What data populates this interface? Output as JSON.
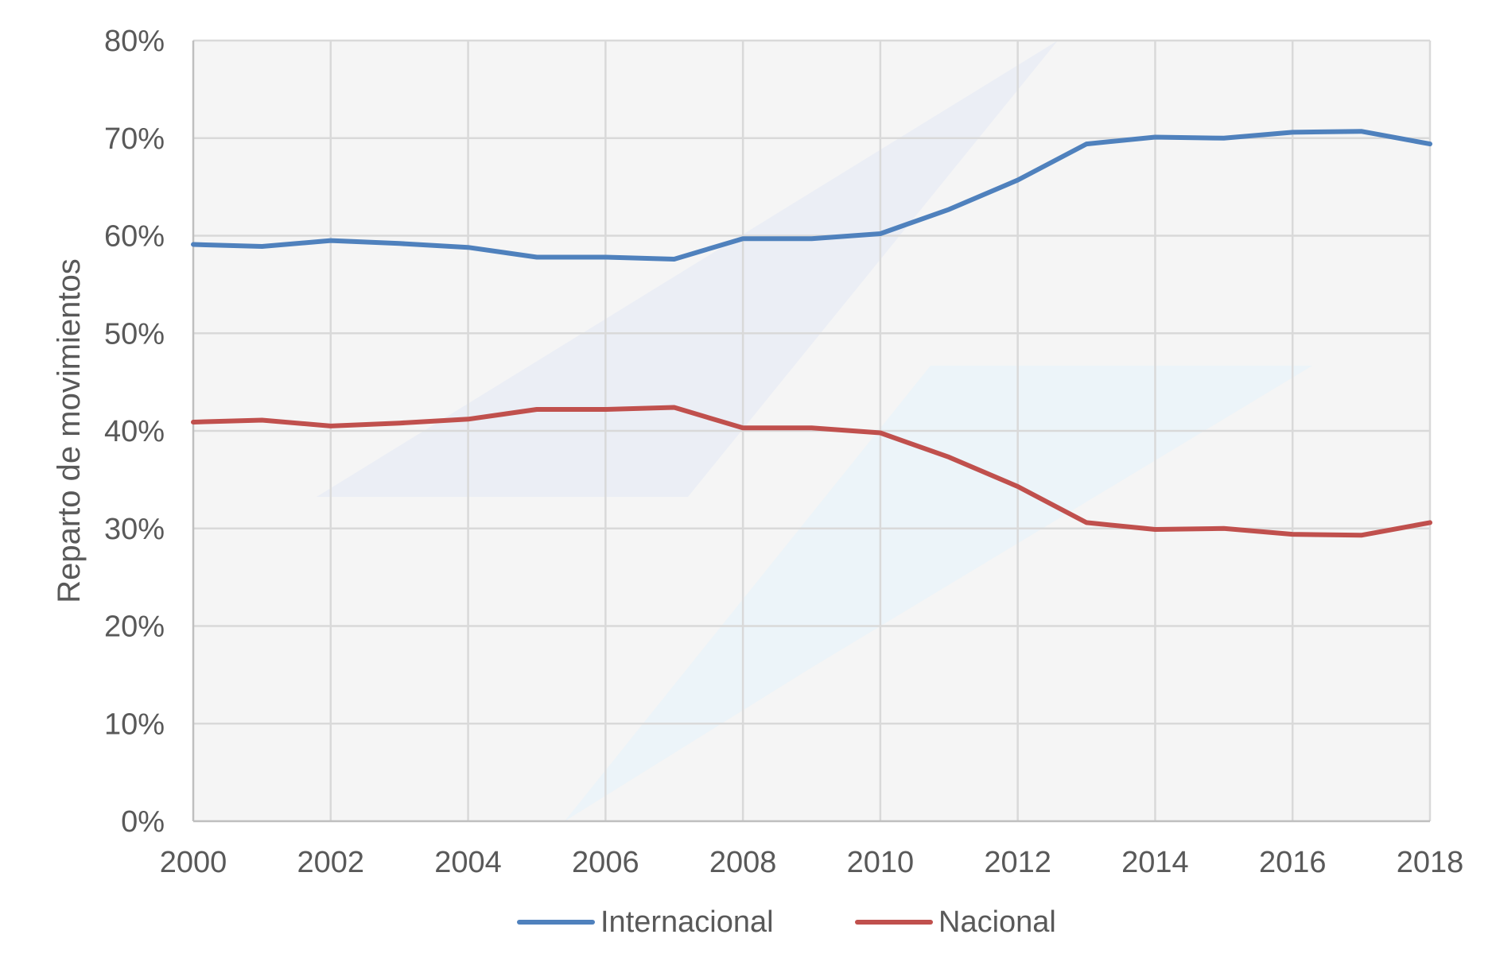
{
  "chart_data": {
    "type": "line",
    "title": "",
    "xlabel": "",
    "ylabel": "Reparto de movimientos",
    "x": [
      2000,
      2001,
      2002,
      2003,
      2004,
      2005,
      2006,
      2007,
      2008,
      2009,
      2010,
      2011,
      2012,
      2013,
      2014,
      2015,
      2016,
      2017,
      2018
    ],
    "x_ticks": [
      "2000",
      "2002",
      "2004",
      "2006",
      "2008",
      "2010",
      "2012",
      "2014",
      "2016",
      "2018"
    ],
    "xlim": [
      2000,
      2018
    ],
    "ylim": [
      0,
      80
    ],
    "y_ticks": [
      "0%",
      "10%",
      "20%",
      "30%",
      "40%",
      "50%",
      "60%",
      "70%",
      "80%"
    ],
    "grid": true,
    "legend_position": "bottom",
    "series": [
      {
        "name": "Internacional",
        "color": "#4f81bd",
        "values": [
          59.1,
          58.9,
          59.5,
          59.2,
          58.8,
          57.8,
          57.8,
          57.6,
          59.7,
          59.7,
          60.2,
          62.7,
          65.7,
          69.4,
          70.1,
          70.0,
          70.6,
          70.7,
          69.4
        ]
      },
      {
        "name": "Nacional",
        "color": "#c0504d",
        "values": [
          40.9,
          41.1,
          40.5,
          40.8,
          41.2,
          42.2,
          42.2,
          42.4,
          40.3,
          40.3,
          39.8,
          37.3,
          34.3,
          30.6,
          29.9,
          30.0,
          29.4,
          29.3,
          30.6
        ]
      }
    ]
  }
}
